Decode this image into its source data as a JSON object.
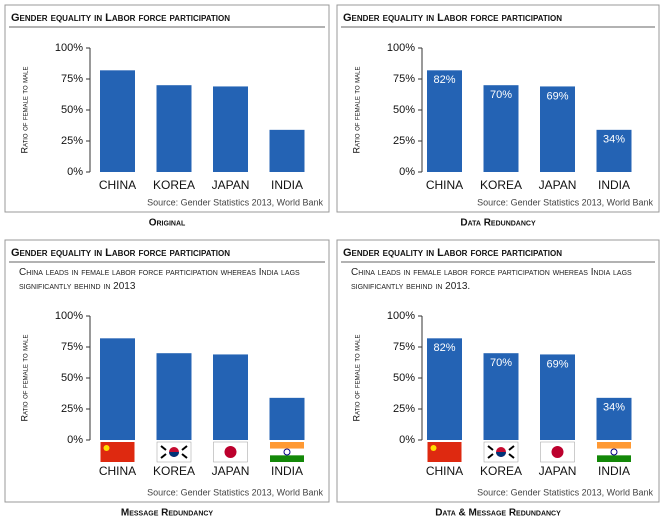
{
  "chart_data": [
    {
      "type": "bar",
      "title": "Gender equality in Labor force participation",
      "y_label": "Ratio of female to male",
      "categories": [
        "CHINA",
        "KOREA",
        "JAPAN",
        "INDIA"
      ],
      "values": [
        82,
        70,
        69,
        34
      ],
      "color": "#2463b4",
      "ylim": [
        0,
        100
      ],
      "yticks": [
        {
          "value": 0,
          "label": "0%"
        },
        {
          "value": 25,
          "label": "25%"
        },
        {
          "value": 50,
          "label": "50%"
        },
        {
          "value": 75,
          "label": "75%"
        },
        {
          "value": 100,
          "label": "100%"
        }
      ],
      "source": "Source: Gender Statistics 2013, World Bank",
      "caption": "Original",
      "flags": false
    },
    {
      "type": "bar",
      "title": "Gender equality in Labor force participation",
      "y_label": "Ratio of female to male",
      "categories": [
        "CHINA",
        "KOREA",
        "JAPAN",
        "INDIA"
      ],
      "values": [
        82,
        70,
        69,
        34
      ],
      "value_labels": [
        "82%",
        "70%",
        "69%",
        "34%"
      ],
      "color": "#2463b4",
      "ylim": [
        0,
        100
      ],
      "yticks": [
        {
          "value": 0,
          "label": "0%"
        },
        {
          "value": 25,
          "label": "25%"
        },
        {
          "value": 50,
          "label": "50%"
        },
        {
          "value": 75,
          "label": "75%"
        },
        {
          "value": 100,
          "label": "100%"
        }
      ],
      "source": "Source: Gender Statistics 2013, World Bank",
      "caption": "Data Redundancy",
      "flags": false
    },
    {
      "type": "bar",
      "title": "Gender equality in Labor force participation",
      "subtitle": "China leads in female labor force participation whereas India lags significantly behind in 2013",
      "y_label": "Ratio of female to male",
      "categories": [
        "CHINA",
        "KOREA",
        "JAPAN",
        "INDIA"
      ],
      "values": [
        82,
        70,
        69,
        34
      ],
      "color": "#2463b4",
      "ylim": [
        0,
        100
      ],
      "yticks": [
        {
          "value": 0,
          "label": "0%"
        },
        {
          "value": 25,
          "label": "25%"
        },
        {
          "value": 50,
          "label": "50%"
        },
        {
          "value": 75,
          "label": "75%"
        },
        {
          "value": 100,
          "label": "100%"
        }
      ],
      "source": "Source: Gender Statistics 2013, World Bank",
      "caption": "Message Redundancy",
      "flags": true
    },
    {
      "type": "bar",
      "title": "Gender equality in Labor force participation",
      "subtitle": "China leads in female labor force participation whereas India lags significantly behind in 2013.",
      "y_label": "Ratio of female to male",
      "categories": [
        "CHINA",
        "KOREA",
        "JAPAN",
        "INDIA"
      ],
      "values": [
        82,
        70,
        69,
        34
      ],
      "value_labels": [
        "82%",
        "70%",
        "69%",
        "34%"
      ],
      "color": "#2463b4",
      "ylim": [
        0,
        100
      ],
      "yticks": [
        {
          "value": 0,
          "label": "0%"
        },
        {
          "value": 25,
          "label": "25%"
        },
        {
          "value": 50,
          "label": "50%"
        },
        {
          "value": 75,
          "label": "75%"
        },
        {
          "value": 100,
          "label": "100%"
        }
      ],
      "source": "Source: Gender Statistics 2013, World Bank",
      "caption": "Data & Message Redundancy",
      "flags": true
    }
  ]
}
